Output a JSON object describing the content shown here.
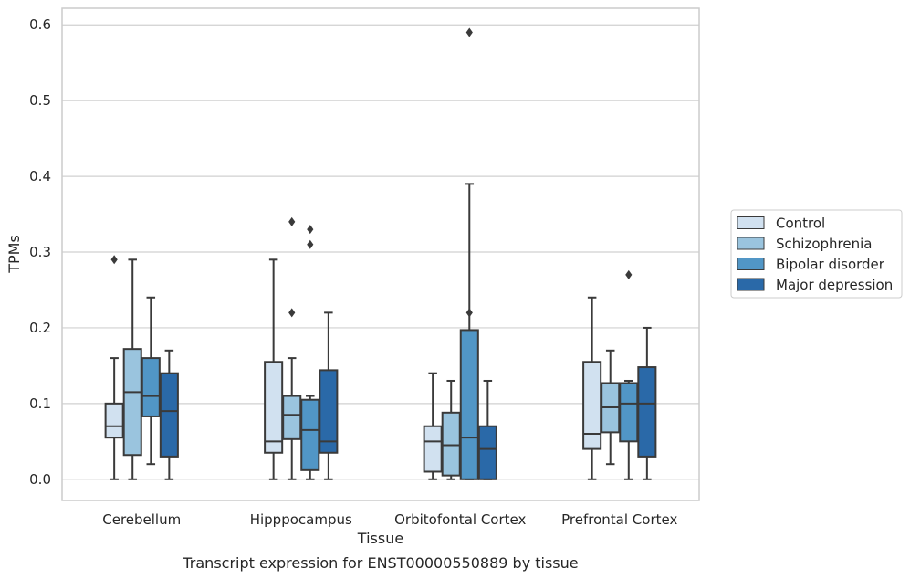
{
  "chart_data": {
    "type": "box",
    "title": "",
    "caption": "Transcript expression for ENST00000550889 by tissue",
    "xlabel": "Tissue",
    "ylabel": "TPMs",
    "ylim": [
      -0.028,
      0.622
    ],
    "yticks": [
      0.0,
      0.1,
      0.2,
      0.3,
      0.4,
      0.5,
      0.6
    ],
    "grid": "horizontal",
    "legend_position": "right",
    "categories": [
      "Cerebellum",
      "Hipppocampus",
      "Orbitofontal Cortex",
      "Prefrontal Cortex"
    ],
    "series": [
      {
        "name": "Control",
        "color": "#d1e1f0",
        "boxes": [
          {
            "whislo": 0.0,
            "q1": 0.055,
            "med": 0.07,
            "q3": 0.1,
            "whishi": 0.16,
            "fliers": [
              0.29
            ]
          },
          {
            "whislo": 0.0,
            "q1": 0.035,
            "med": 0.05,
            "q3": 0.155,
            "whishi": 0.29,
            "fliers": []
          },
          {
            "whislo": 0.0,
            "q1": 0.01,
            "med": 0.05,
            "q3": 0.07,
            "whishi": 0.14,
            "fliers": []
          },
          {
            "whislo": 0.0,
            "q1": 0.04,
            "med": 0.06,
            "q3": 0.155,
            "whishi": 0.24,
            "fliers": []
          }
        ]
      },
      {
        "name": "Schizophrenia",
        "color": "#9ac4de",
        "boxes": [
          {
            "whislo": 0.0,
            "q1": 0.032,
            "med": 0.115,
            "q3": 0.172,
            "whishi": 0.29,
            "fliers": []
          },
          {
            "whislo": 0.0,
            "q1": 0.053,
            "med": 0.085,
            "q3": 0.11,
            "whishi": 0.16,
            "fliers": [
              0.22,
              0.34
            ]
          },
          {
            "whislo": 0.0,
            "q1": 0.005,
            "med": 0.045,
            "q3": 0.088,
            "whishi": 0.13,
            "fliers": []
          },
          {
            "whislo": 0.02,
            "q1": 0.062,
            "med": 0.095,
            "q3": 0.127,
            "whishi": 0.17,
            "fliers": []
          }
        ]
      },
      {
        "name": "Bipolar disorder",
        "color": "#5196c6",
        "boxes": [
          {
            "whislo": 0.02,
            "q1": 0.083,
            "med": 0.11,
            "q3": 0.16,
            "whishi": 0.24,
            "fliers": []
          },
          {
            "whislo": 0.0,
            "q1": 0.012,
            "med": 0.065,
            "q3": 0.105,
            "whishi": 0.11,
            "fliers": [
              0.31,
              0.33
            ]
          },
          {
            "whislo": 0.0,
            "q1": 0.0,
            "med": 0.055,
            "q3": 0.197,
            "whishi": 0.39,
            "fliers": [
              0.22,
              0.59
            ]
          },
          {
            "whislo": 0.0,
            "q1": 0.05,
            "med": 0.1,
            "q3": 0.127,
            "whishi": 0.13,
            "fliers": [
              0.27
            ]
          }
        ]
      },
      {
        "name": "Major depression",
        "color": "#2a69a8",
        "boxes": [
          {
            "whislo": 0.0,
            "q1": 0.03,
            "med": 0.09,
            "q3": 0.14,
            "whishi": 0.17,
            "fliers": []
          },
          {
            "whislo": 0.0,
            "q1": 0.035,
            "med": 0.05,
            "q3": 0.144,
            "whishi": 0.22,
            "fliers": []
          },
          {
            "whislo": 0.0,
            "q1": 0.0,
            "med": 0.04,
            "q3": 0.07,
            "whishi": 0.13,
            "fliers": []
          },
          {
            "whislo": 0.0,
            "q1": 0.03,
            "med": 0.1,
            "q3": 0.148,
            "whishi": 0.2,
            "fliers": []
          }
        ]
      }
    ]
  }
}
